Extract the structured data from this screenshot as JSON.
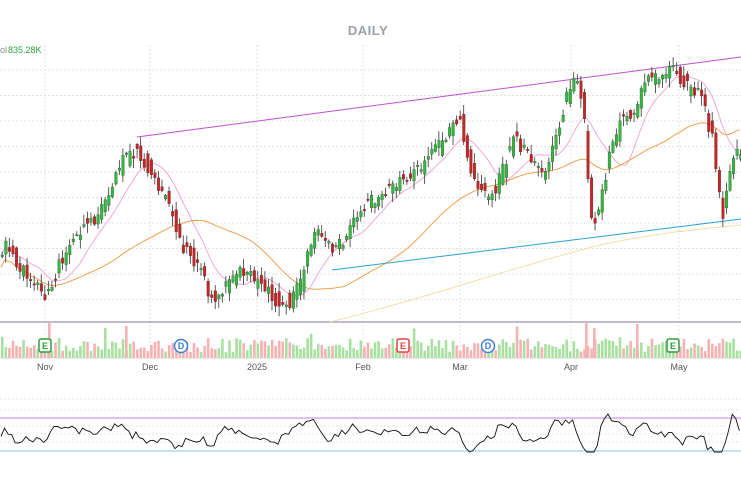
{
  "title": "DAILY",
  "volume_label": "ol",
  "volume_value": "835.28K",
  "colors": {
    "up": "#2ebd3a",
    "down": "#cc2222",
    "vol_up": "#a8e0a0",
    "vol_down": "#f4b2b2",
    "sma_short": "#f0a8d8",
    "sma_mid": "#f0a050",
    "sma_long": "#f5dcaa",
    "upper_trend": "#c050d0",
    "lower_trend": "#2aa0d0",
    "oscillator": "#111111",
    "osc_upper": "#c080e0",
    "osc_lower": "#80c8e8",
    "event_earnings": "#2e9e3f",
    "event_earnings_red": "#dd4444",
    "event_dividend": "#3a7fd5"
  },
  "chart_data": {
    "type": "candlestick",
    "title": "DAILY",
    "x_labels": [
      "Nov",
      "Dec",
      "2025",
      "Feb",
      "Mar",
      "Apr",
      "May"
    ],
    "events": [
      {
        "label": "E",
        "kind": "earnings",
        "month": "Nov"
      },
      {
        "label": "D",
        "kind": "dividend",
        "month": "Dec"
      },
      {
        "label": "E",
        "kind": "earnings-red",
        "month": "Feb"
      },
      {
        "label": "D",
        "kind": "dividend",
        "month": "Mar"
      },
      {
        "label": "E",
        "kind": "earnings",
        "month": "May"
      }
    ],
    "indicators": [
      "SMA short",
      "SMA mid",
      "SMA long",
      "upper trendline",
      "lower trendline",
      "oscillator"
    ],
    "grid": true
  }
}
